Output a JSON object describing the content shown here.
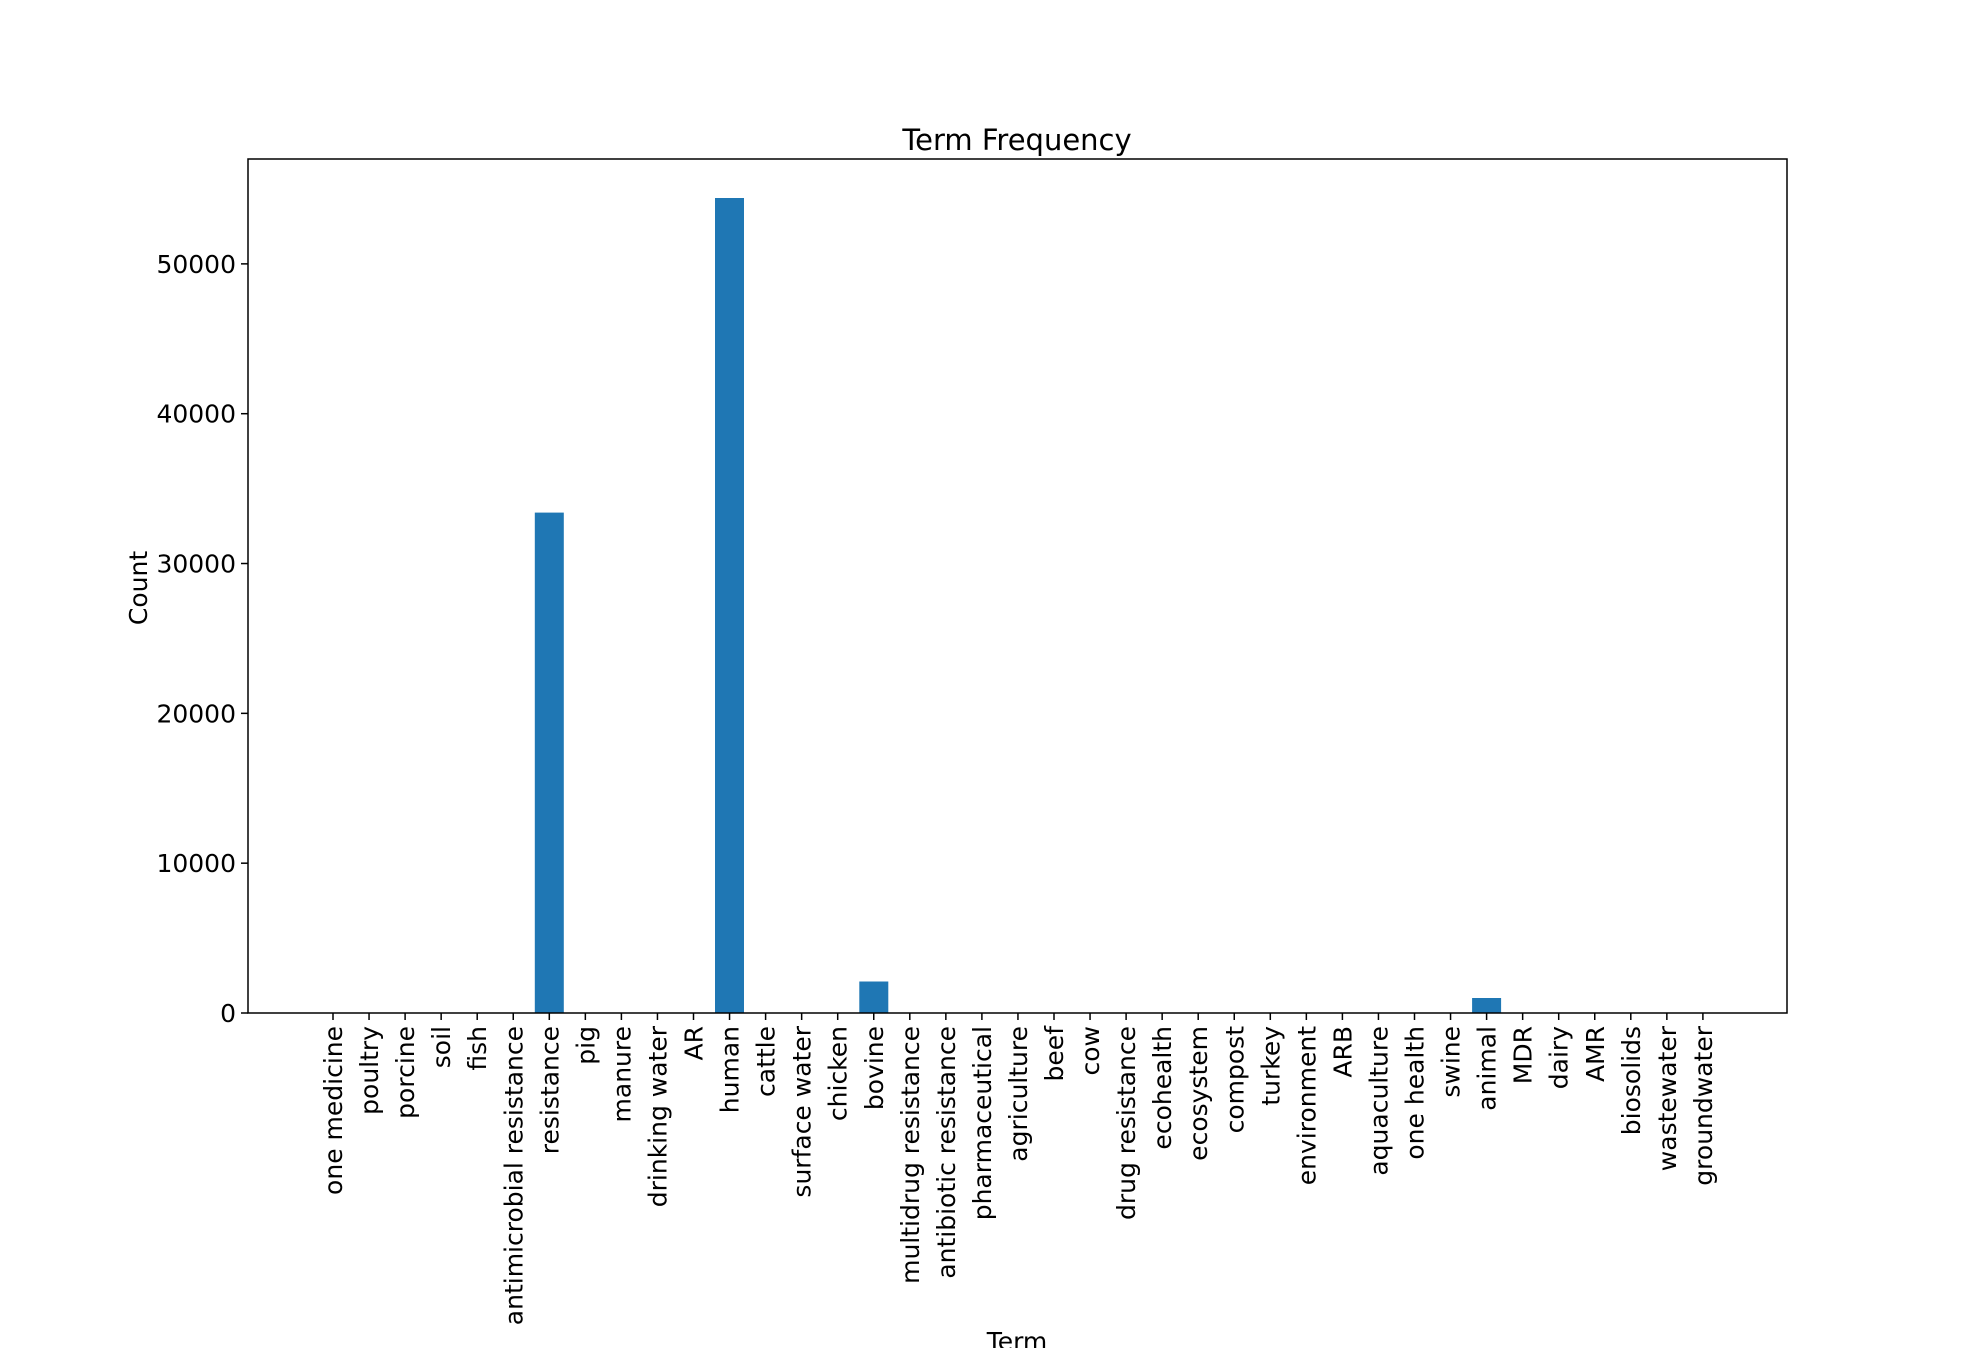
{
  "chart_data": {
    "type": "bar",
    "title": "Term Frequency",
    "xlabel": "Term",
    "ylabel": "Count",
    "ylim": [
      0,
      57000
    ],
    "yticks": [
      0,
      10000,
      20000,
      30000,
      40000,
      50000
    ],
    "ytick_labels": [
      "0",
      "10000",
      "20000",
      "30000",
      "40000",
      "50000"
    ],
    "bar_color": "#1f77b4",
    "grid": false,
    "legend": "none",
    "categories": [
      "one medicine",
      "poultry",
      "porcine",
      "soil",
      "fish",
      "antimicrobial resistance",
      "resistance",
      "pig",
      "manure",
      "drinking water",
      "AR",
      "human",
      "cattle",
      "surface water",
      "chicken",
      "bovine",
      "multidrug resistance",
      "antibiotic resistance",
      "pharmaceutical",
      "agriculture",
      "beef",
      "cow",
      "drug resistance",
      "ecohealth",
      "ecosystem",
      "compost",
      "turkey",
      "environment",
      "ARB",
      "aquaculture",
      "one health",
      "swine",
      "animal",
      "MDR",
      "dairy",
      "AMR",
      "biosolids",
      "wastewater",
      "groundwater"
    ],
    "values": [
      0,
      0,
      0,
      0,
      0,
      0,
      33400,
      0,
      0,
      0,
      0,
      54400,
      0,
      0,
      0,
      2100,
      0,
      0,
      0,
      0,
      0,
      0,
      0,
      0,
      0,
      0,
      0,
      0,
      0,
      0,
      0,
      0,
      1000,
      0,
      0,
      0,
      0,
      0,
      0
    ]
  }
}
